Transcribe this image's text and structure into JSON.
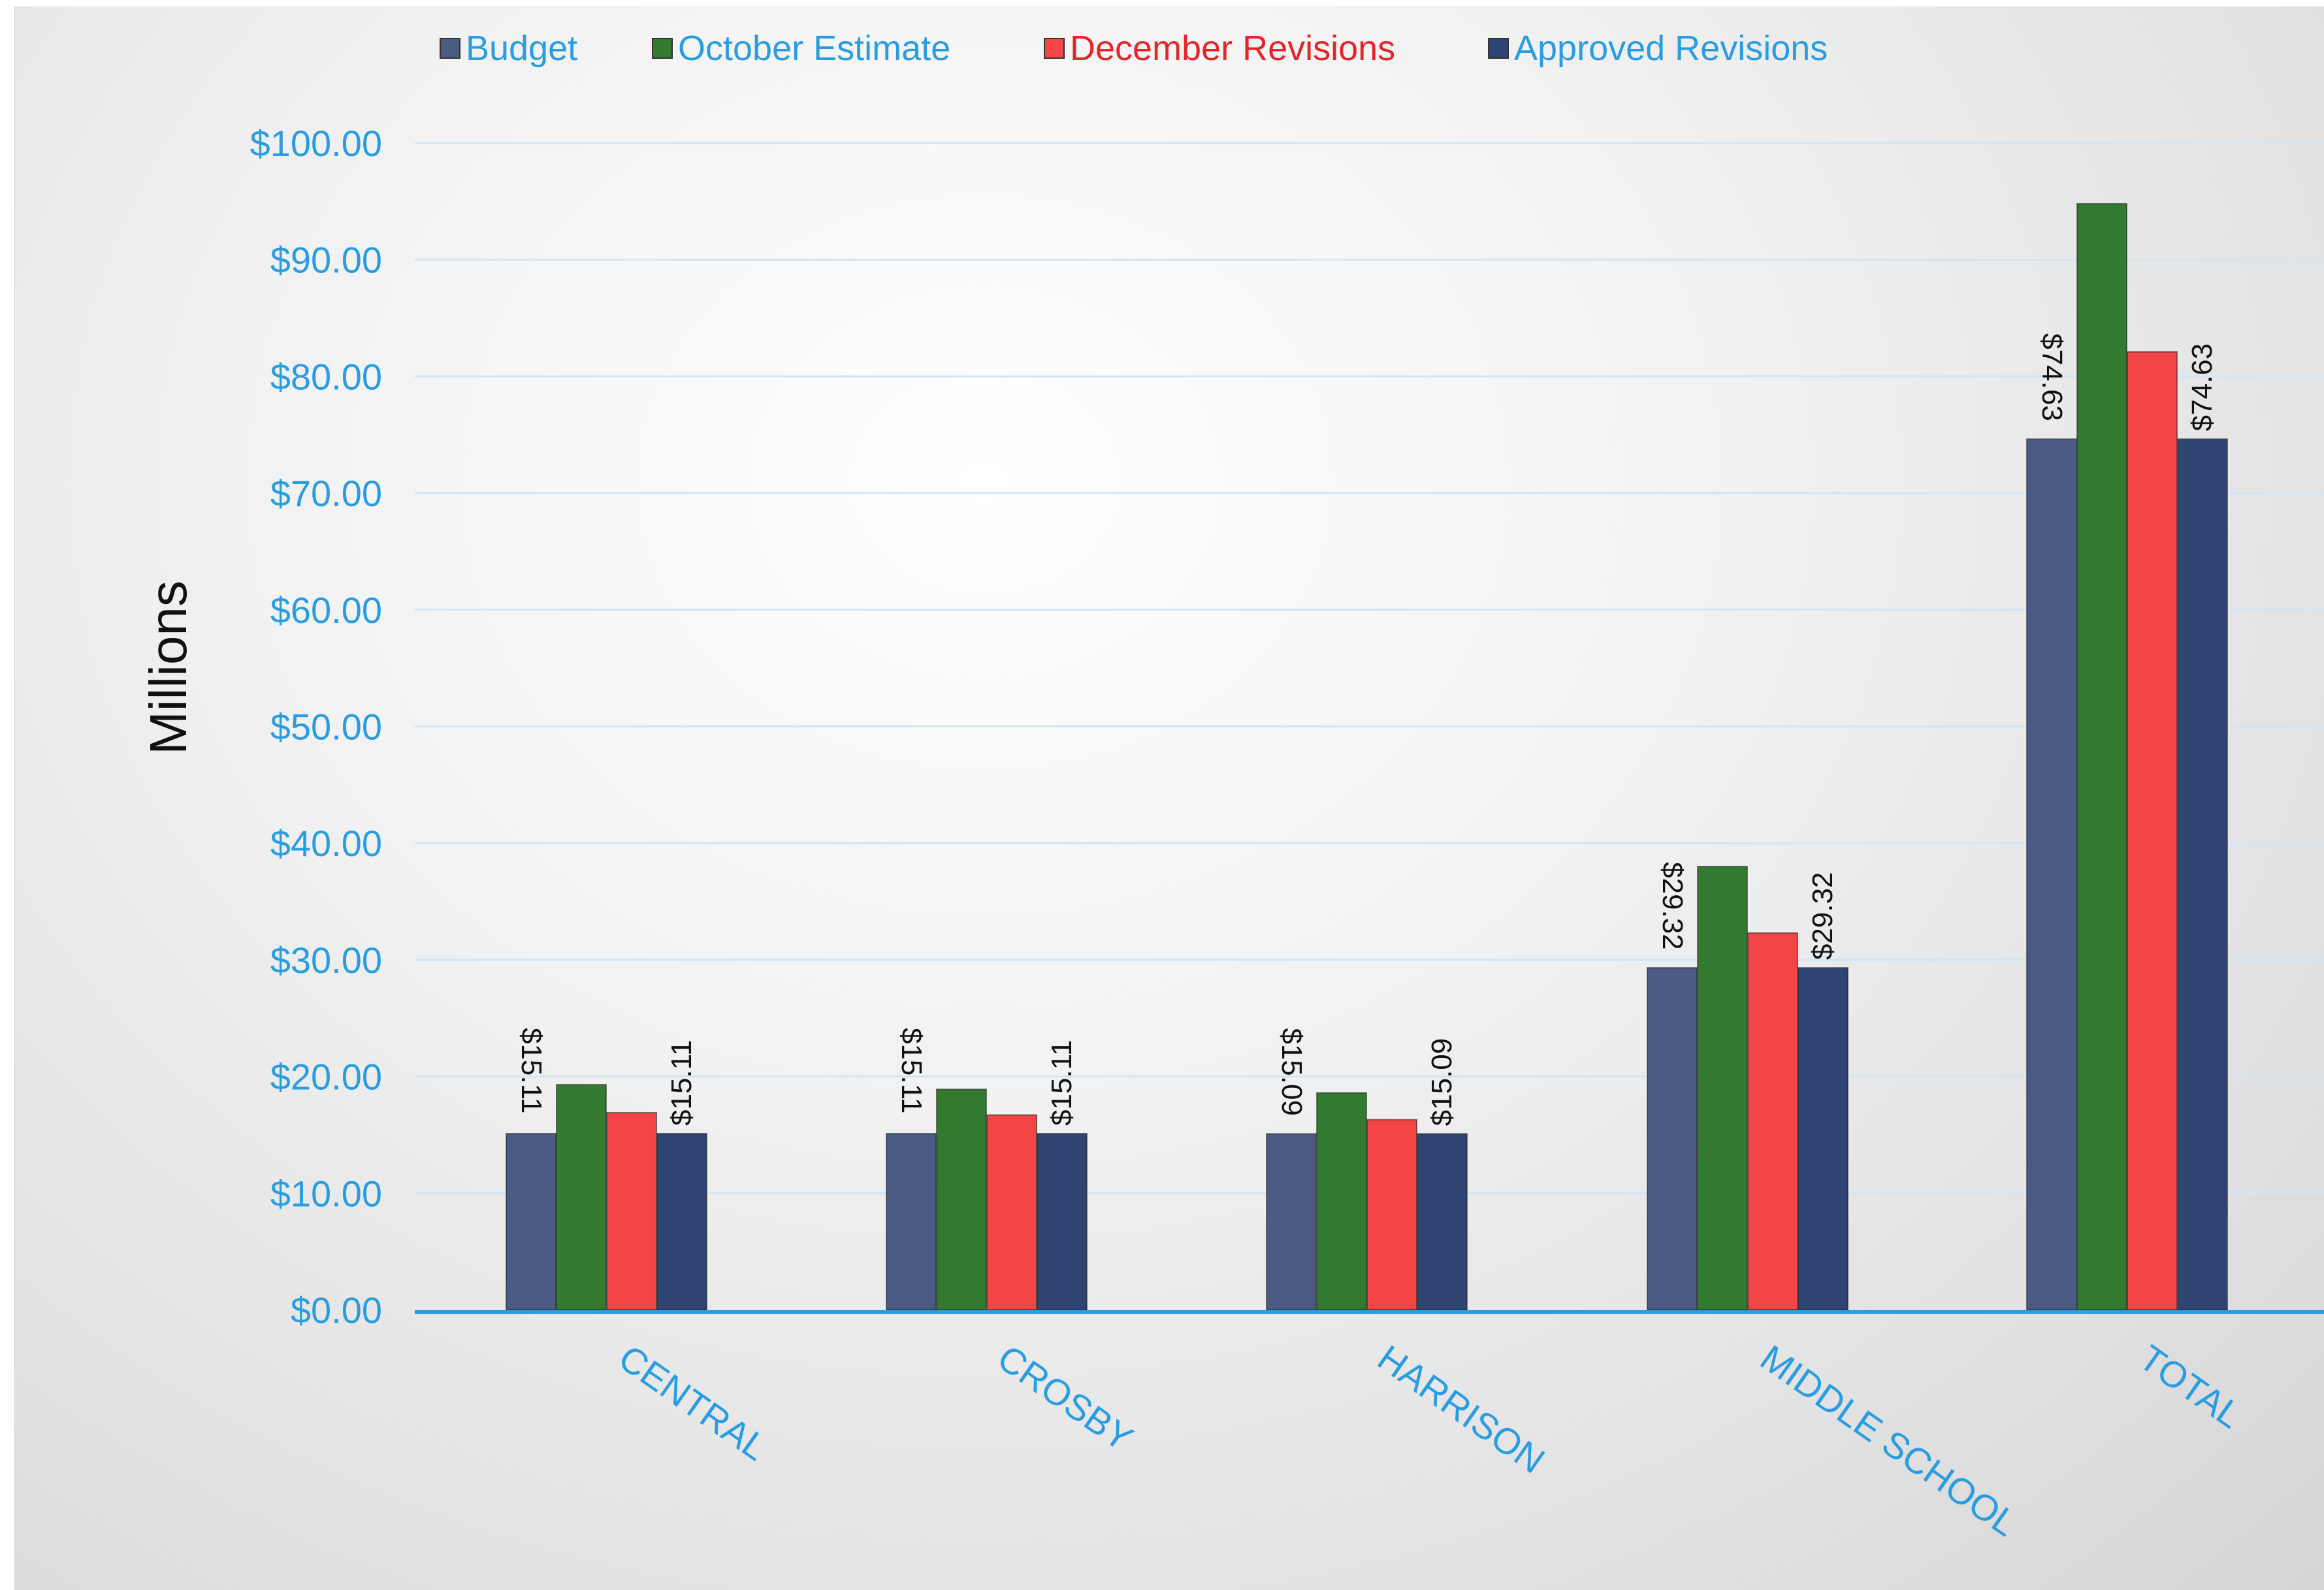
{
  "chart_data": {
    "type": "bar",
    "ylabel": "Millions",
    "ylim": [
      0,
      100
    ],
    "yticks": [
      "$0.00",
      "$10.00",
      "$20.00",
      "$30.00",
      "$40.00",
      "$50.00",
      "$60.00",
      "$70.00",
      "$80.00",
      "$90.00",
      "$100.00"
    ],
    "categories": [
      "CENTRAL",
      "CROSBY",
      "HARRISON",
      "MIDDLE SCHOOL",
      "TOTAL"
    ],
    "series": [
      {
        "name": "Budget",
        "color": "#4a5a82",
        "legend_text_color": "#2a9de0",
        "values": [
          15.11,
          15.11,
          15.09,
          29.32,
          74.63
        ],
        "labels": [
          "$15.11",
          "$15.11",
          "$15.09",
          "$29.32",
          "$74.63"
        ]
      },
      {
        "name": "October Estimate",
        "color": "#317a2f",
        "legend_text_color": "#2a9de0",
        "values": [
          19.3,
          18.9,
          18.6,
          38.0,
          94.8
        ],
        "labels": null
      },
      {
        "name": "December Revisions",
        "color": "#f44546",
        "legend_text_color": "#e3262a",
        "values": [
          16.9,
          16.7,
          16.3,
          32.3,
          82.1
        ],
        "labels": null
      },
      {
        "name": "Approved Revisions",
        "color": "#2f4473",
        "legend_text_color": "#2a9de0",
        "values": [
          15.11,
          15.11,
          15.09,
          29.32,
          74.63
        ],
        "labels": [
          "$15.11",
          "$15.11",
          "$15.09",
          "$29.32",
          "$74.63"
        ]
      }
    ],
    "gridlines": true,
    "legend_position": "top",
    "colors": {
      "axis_text": "#2a9de0",
      "axis_line": "#2a9de0",
      "gridline": "#cfe6f7",
      "data_label": "#111111",
      "ylabel": "#111111"
    }
  }
}
